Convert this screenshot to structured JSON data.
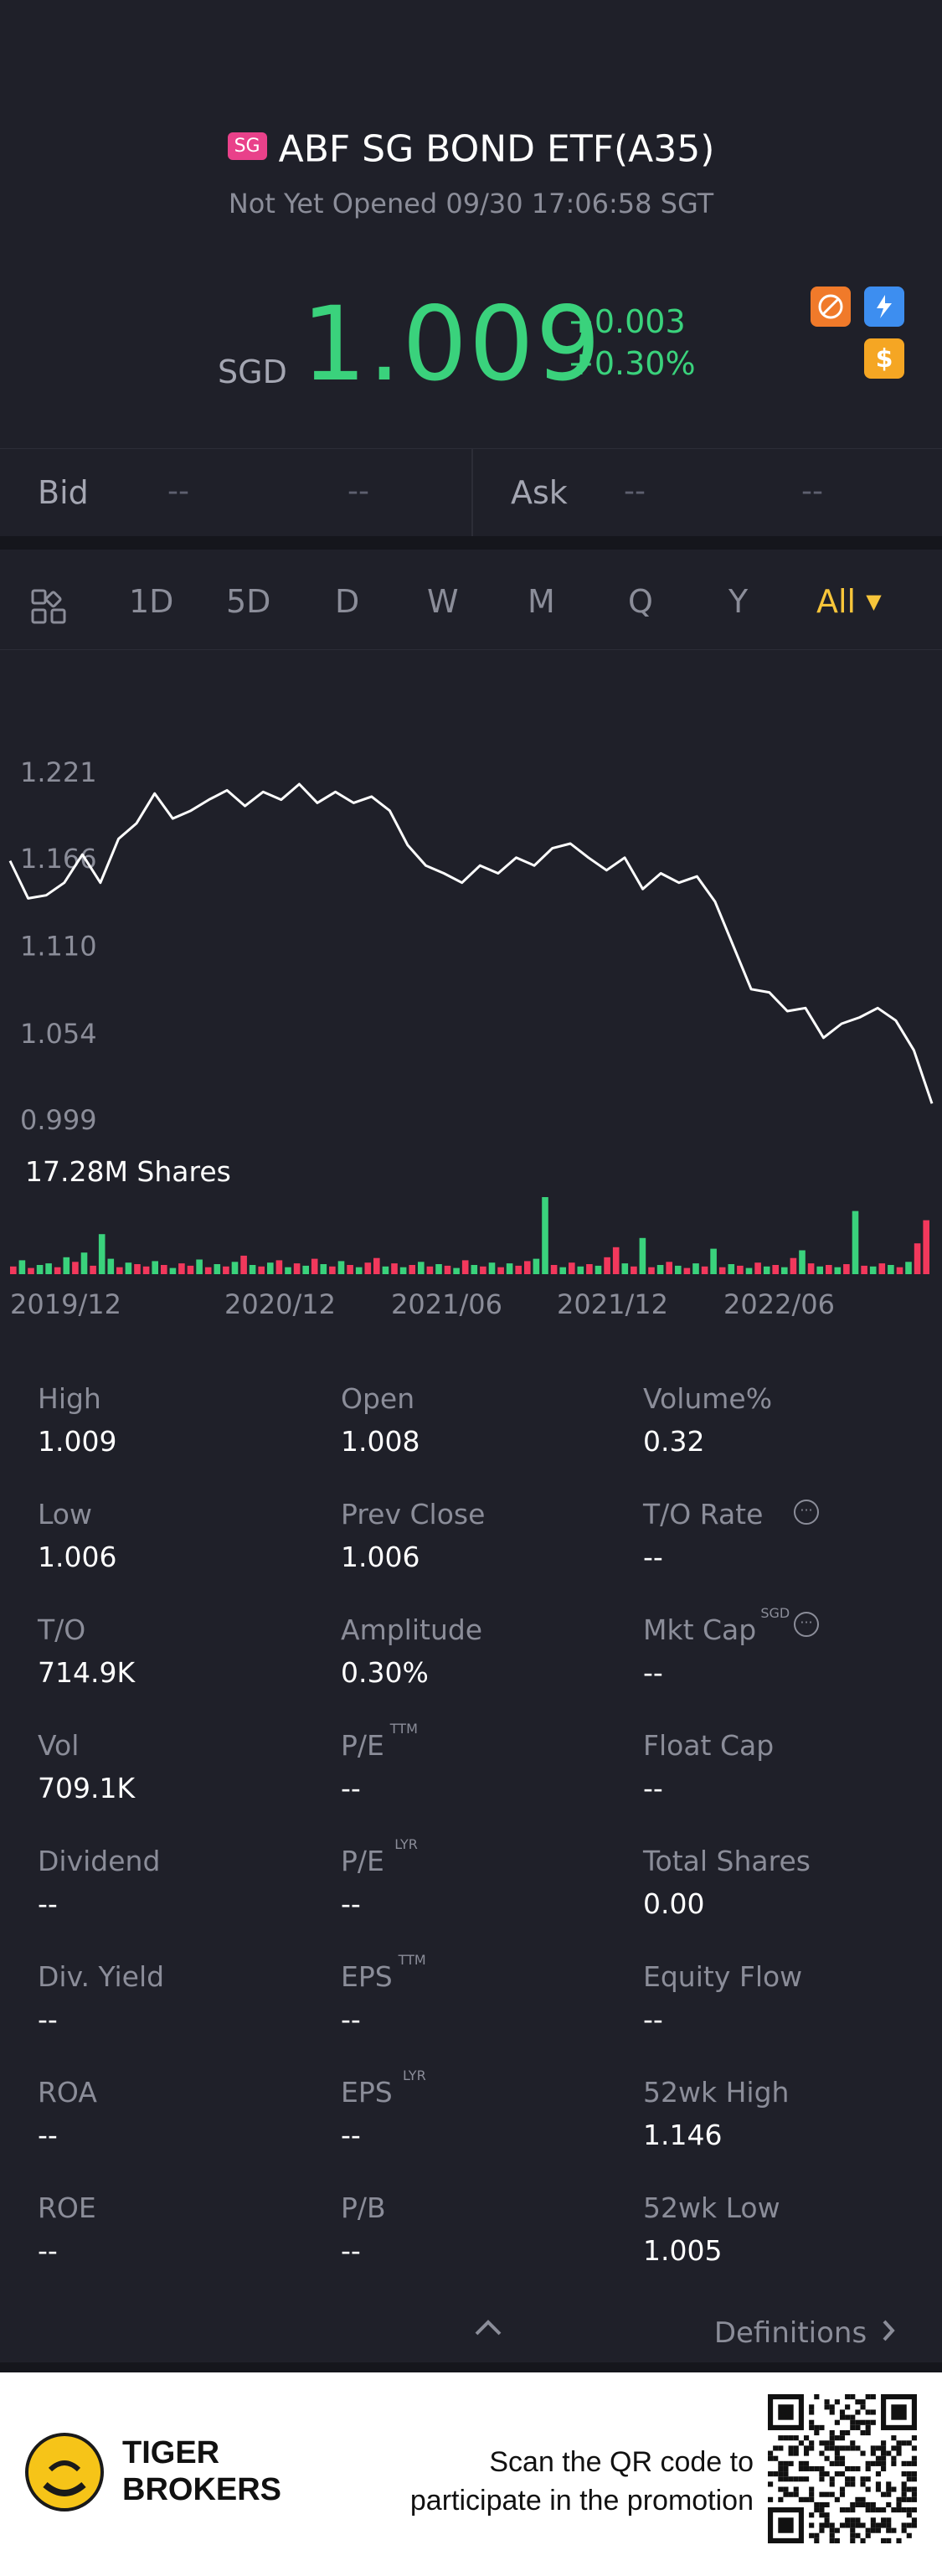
{
  "header": {
    "market_badge": "SG",
    "title": "ABF SG BOND ETF(A35)",
    "status": "Not Yet Opened 09/30 17:06:58 SGT",
    "currency": "SGD",
    "price": "1.009",
    "change": "+0.003",
    "change_pct": "+0.30%",
    "colors": {
      "up": "#3ad27c",
      "down": "#f2385c",
      "accent": "#f7c53a"
    },
    "icons": [
      "no-short-icon",
      "lightning-icon",
      "dollar-icon"
    ]
  },
  "bidask": {
    "bid_label": "Bid",
    "bid_price": "--",
    "bid_size": "--",
    "ask_label": "Ask",
    "ask_price": "--",
    "ask_size": "--"
  },
  "tabs": {
    "items": [
      "1D",
      "5D",
      "D",
      "W",
      "M",
      "Q",
      "Y"
    ],
    "active": "All"
  },
  "chart_data": {
    "type": "line",
    "y_ticks": [
      "1.221",
      "1.166",
      "1.110",
      "1.054",
      "0.999"
    ],
    "x_ticks": [
      "2019/12",
      "2020/12",
      "2021/06",
      "2021/12",
      "2022/06"
    ],
    "ylim": [
      0.999,
      1.221
    ],
    "price_series": [
      1.164,
      1.14,
      1.142,
      1.15,
      1.168,
      1.15,
      1.178,
      1.188,
      1.207,
      1.191,
      1.196,
      1.203,
      1.209,
      1.199,
      1.208,
      1.203,
      1.213,
      1.201,
      1.208,
      1.201,
      1.205,
      1.196,
      1.174,
      1.161,
      1.156,
      1.15,
      1.161,
      1.156,
      1.166,
      1.161,
      1.172,
      1.175,
      1.166,
      1.158,
      1.166,
      1.146,
      1.156,
      1.15,
      1.154,
      1.138,
      1.11,
      1.082,
      1.08,
      1.068,
      1.07,
      1.051,
      1.06,
      1.064,
      1.07,
      1.062,
      1.043,
      1.009
    ],
    "volume_label": "17.28M Shares",
    "volume_series": {
      "values": [
        0.1,
        0.18,
        0.08,
        0.12,
        0.14,
        0.09,
        0.22,
        0.16,
        0.28,
        0.11,
        0.52,
        0.2,
        0.09,
        0.15,
        0.13,
        0.1,
        0.17,
        0.12,
        0.08,
        0.14,
        0.11,
        0.19,
        0.09,
        0.13,
        0.1,
        0.16,
        0.24,
        0.12,
        0.1,
        0.15,
        0.18,
        0.09,
        0.14,
        0.11,
        0.2,
        0.13,
        0.1,
        0.17,
        0.12,
        0.09,
        0.15,
        0.21,
        0.1,
        0.14,
        0.09,
        0.12,
        0.16,
        0.1,
        0.13,
        0.11,
        0.08,
        0.18,
        0.12,
        0.1,
        0.15,
        0.09,
        0.14,
        0.11,
        0.17,
        0.2,
        1.0,
        0.12,
        0.09,
        0.15,
        0.1,
        0.13,
        0.11,
        0.22,
        0.35,
        0.14,
        0.1,
        0.47,
        0.09,
        0.12,
        0.16,
        0.11,
        0.08,
        0.14,
        0.1,
        0.33,
        0.09,
        0.13,
        0.11,
        0.08,
        0.15,
        0.1,
        0.12,
        0.09,
        0.21,
        0.31,
        0.14,
        0.1,
        0.12,
        0.09,
        0.13,
        0.82,
        0.11,
        0.1,
        0.14,
        0.12,
        0.09,
        0.16,
        0.4,
        0.7
      ],
      "direction": [
        "d",
        "u",
        "d",
        "u",
        "u",
        "d",
        "u",
        "d",
        "u",
        "d",
        "u",
        "u",
        "d",
        "u",
        "d",
        "d",
        "u",
        "d",
        "u",
        "d",
        "d",
        "u",
        "d",
        "u",
        "d",
        "u",
        "d",
        "u",
        "d",
        "u",
        "d",
        "u",
        "d",
        "u",
        "d",
        "u",
        "d",
        "u",
        "d",
        "u",
        "d",
        "d",
        "u",
        "d",
        "u",
        "d",
        "u",
        "d",
        "u",
        "d",
        "u",
        "d",
        "u",
        "d",
        "u",
        "d",
        "u",
        "d",
        "d",
        "u",
        "u",
        "d",
        "u",
        "d",
        "u",
        "d",
        "u",
        "d",
        "d",
        "u",
        "d",
        "u",
        "d",
        "u",
        "d",
        "u",
        "d",
        "u",
        "d",
        "u",
        "d",
        "u",
        "d",
        "u",
        "d",
        "u",
        "d",
        "u",
        "d",
        "u",
        "d",
        "u",
        "d",
        "u",
        "d",
        "u",
        "d",
        "u",
        "d",
        "u",
        "d",
        "u",
        "d",
        "d"
      ]
    }
  },
  "metrics": [
    [
      {
        "k": "High",
        "v": "1.009"
      },
      {
        "k": "Open",
        "v": "1.008"
      },
      {
        "k": "Volume%",
        "v": "0.32"
      }
    ],
    [
      {
        "k": "Low",
        "v": "1.006"
      },
      {
        "k": "Prev Close",
        "v": "1.006"
      },
      {
        "k": "T/O Rate",
        "v": "--",
        "info": true
      }
    ],
    [
      {
        "k": "T/O",
        "v": "714.9K"
      },
      {
        "k": "Amplitude",
        "v": "0.30%"
      },
      {
        "k": "Mkt Cap",
        "sup": "SGD",
        "v": "--",
        "info": true
      }
    ],
    [
      {
        "k": "Vol",
        "v": "709.1K"
      },
      {
        "k": "P/E",
        "sup": "TTM",
        "v": "--"
      },
      {
        "k": "Float Cap",
        "v": "--"
      }
    ],
    [
      {
        "k": "Dividend",
        "v": "--"
      },
      {
        "k": "P/E",
        "sup": "LYR",
        "v": "--"
      },
      {
        "k": "Total Shares",
        "v": "0.00"
      }
    ],
    [
      {
        "k": "Div. Yield",
        "v": "--"
      },
      {
        "k": "EPS",
        "sup": "TTM",
        "v": "--"
      },
      {
        "k": "Equity Flow",
        "v": "--"
      }
    ],
    [
      {
        "k": "ROA",
        "v": "--"
      },
      {
        "k": "EPS",
        "sup": "LYR",
        "v": "--"
      },
      {
        "k": "52wk High",
        "v": "1.146"
      }
    ],
    [
      {
        "k": "ROE",
        "v": "--"
      },
      {
        "k": "P/B",
        "v": "--"
      },
      {
        "k": "52wk Low",
        "v": "1.005"
      }
    ]
  ],
  "footer": {
    "definitions_label": "Definitions",
    "brand_line1": "TIGER",
    "brand_line2": "BROKERS",
    "promo_line1": "Scan the QR code to",
    "promo_line2": "participate in the promotion"
  }
}
